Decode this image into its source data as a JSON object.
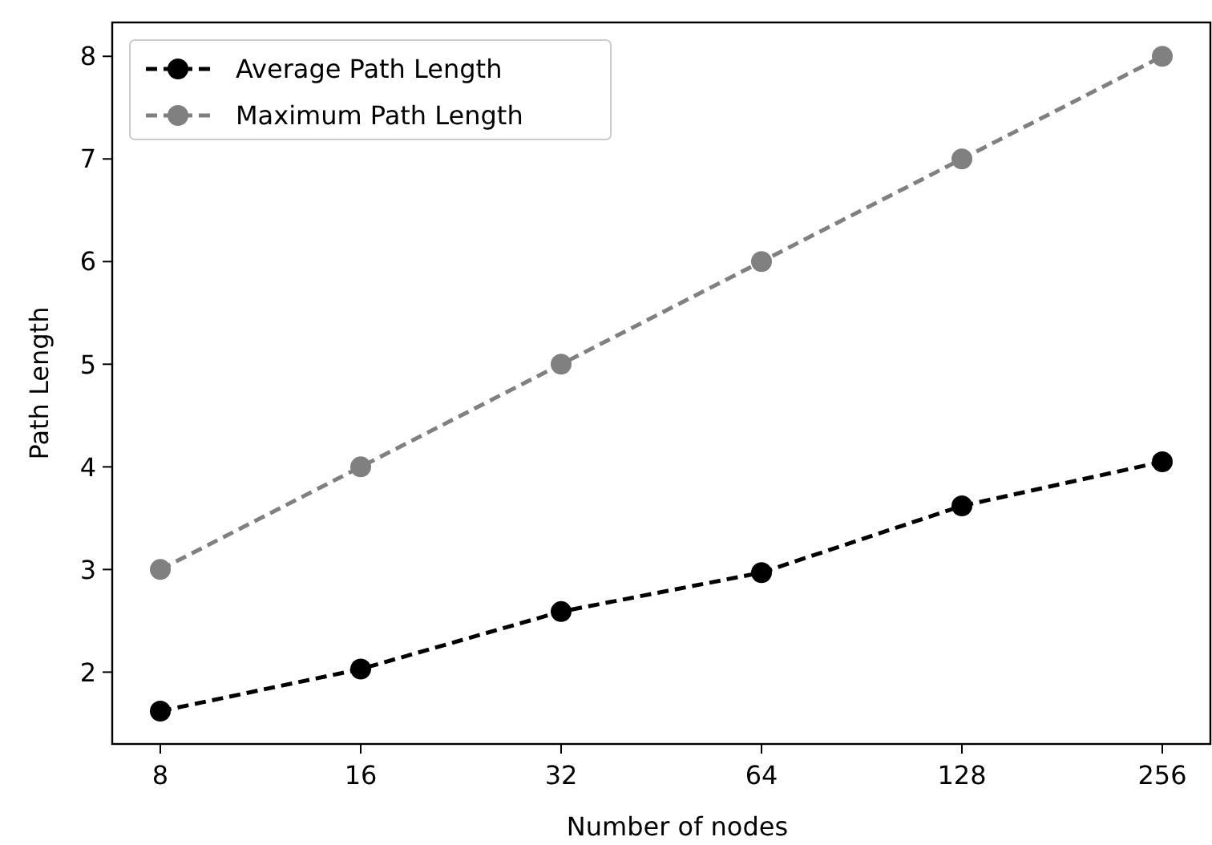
{
  "chart_data": {
    "type": "line",
    "xlabel": "Number of nodes",
    "ylabel": "Path Length",
    "categories": [
      "8",
      "16",
      "32",
      "64",
      "128",
      "256"
    ],
    "series": [
      {
        "name": "Average Path Length",
        "color": "#000000",
        "values": [
          1.62,
          2.03,
          2.59,
          2.97,
          3.62,
          4.05
        ]
      },
      {
        "name": "Maximum Path Length",
        "color": "#808080",
        "values": [
          3,
          4,
          5,
          6,
          7,
          8
        ]
      }
    ],
    "ylim": [
      1.3,
      8.33
    ],
    "yticks": [
      2,
      3,
      4,
      5,
      6,
      7,
      8
    ],
    "grid": false,
    "legend": "top left",
    "marker": "circle",
    "line_style": "dashed"
  }
}
